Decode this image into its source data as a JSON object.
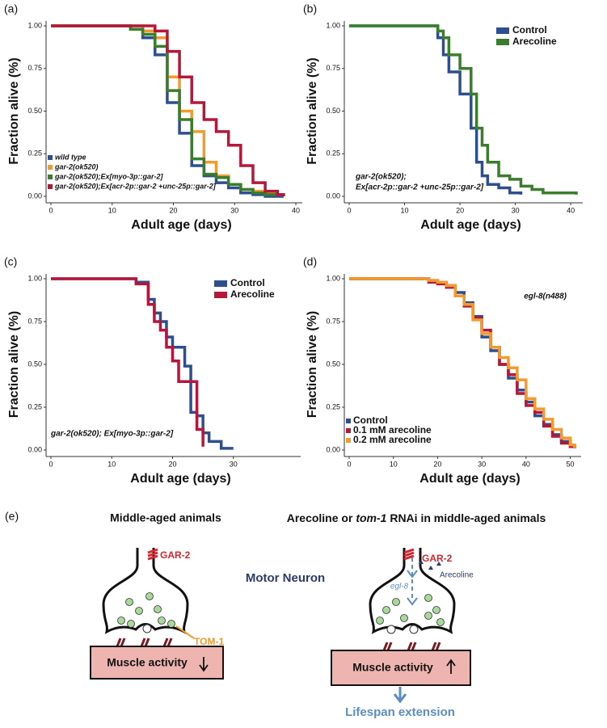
{
  "chart_data": [
    {
      "type": "step",
      "panel": "(a)",
      "ylabel": "Fraction alive (%)",
      "xlabel": "Adult age (days)",
      "legend": "lower left",
      "xlim": [
        0,
        40
      ],
      "xticks": [
        0,
        10,
        20,
        30,
        40
      ],
      "ylim": [
        0,
        1
      ],
      "yticks": [
        {
          "value": 0,
          "label": "0.00"
        },
        {
          "value": 0.25,
          "label": "0.25"
        },
        {
          "value": 0.5,
          "label": "0.50"
        },
        {
          "value": 0.75,
          "label": "0.75"
        },
        {
          "value": 1,
          "label": "1.00"
        }
      ],
      "x": [
        0,
        13,
        15,
        17,
        19,
        21,
        23,
        25,
        27,
        29,
        31,
        33,
        35,
        37,
        38
      ],
      "series": [
        {
          "name": "wild type",
          "color": "#2e4f8f",
          "values": [
            1,
            0.98,
            0.93,
            0.83,
            0.55,
            0.37,
            0.18,
            0.12,
            0.08,
            0.05,
            0.02,
            0.01,
            0,
            0,
            0
          ]
        },
        {
          "name": "gar-2(ok520)",
          "color": "#f39a2d",
          "values": [
            1,
            1,
            0.97,
            0.93,
            0.7,
            0.5,
            0.38,
            0.2,
            0.12,
            0.07,
            0.04,
            0.03,
            0.02,
            0.01,
            0.01
          ]
        },
        {
          "name": "gar-2(ok520);Ex[myo-3p::gar-2]",
          "color": "#3a7d2c",
          "values": [
            1,
            0.98,
            0.95,
            0.88,
            0.62,
            0.45,
            0.22,
            0.13,
            0.11,
            0.07,
            0.04,
            0.02,
            0.01,
            0.01,
            0
          ]
        },
        {
          "name": "gar-2(ok520);Ex[acr-2p::gar-2 +unc-25p::gar-2]",
          "color": "#b5173a",
          "values": [
            1,
            1,
            1,
            0.97,
            0.85,
            0.7,
            0.55,
            0.45,
            0.38,
            0.3,
            0.18,
            0.08,
            0.03,
            0.01,
            0
          ]
        }
      ]
    },
    {
      "type": "step",
      "panel": "(b)",
      "ylabel": "Fraction alive (%)",
      "xlabel": "Adult age (days)",
      "legend": "upper right",
      "annotation": [
        "gar-2(ok520);",
        "Ex[acr-2p::gar-2 +unc-25p::gar-2]"
      ],
      "xlim": [
        0,
        41
      ],
      "xticks": [
        0,
        10,
        20,
        30,
        40
      ],
      "ylim": [
        0,
        1
      ],
      "yticks": [
        {
          "value": 0,
          "label": "0.00"
        },
        {
          "value": 0.25,
          "label": "0.25"
        },
        {
          "value": 0.5,
          "label": "0.50"
        },
        {
          "value": 0.75,
          "label": "0.75"
        },
        {
          "value": 1,
          "label": "1.00"
        }
      ],
      "x": [
        0,
        16,
        17,
        18,
        20,
        22,
        23,
        24,
        25,
        27,
        29,
        31,
        33,
        35,
        38,
        41
      ],
      "series": [
        {
          "name": "Control",
          "color": "#2e4f8f",
          "values": [
            1,
            0.93,
            0.83,
            0.73,
            0.6,
            0.4,
            0.2,
            0.12,
            0.07,
            0.05,
            0.02,
            0.01,
            null,
            null,
            null,
            null
          ]
        },
        {
          "name": "Arecoline",
          "color": "#3a7d2c",
          "values": [
            1,
            0.97,
            0.93,
            0.83,
            0.75,
            0.6,
            0.4,
            0.3,
            0.2,
            0.12,
            0.1,
            0.06,
            0.04,
            0.02,
            0.02,
            0.01
          ]
        }
      ]
    },
    {
      "type": "step",
      "panel": "(c)",
      "ylabel": "Fraction alive (%)",
      "xlabel": "Adult age (days)",
      "legend": "upper right",
      "annotation": [
        "gar-2(ok520); Ex[myo-3p::gar-2]"
      ],
      "xlim": [
        0,
        40
      ],
      "xticks": [
        0,
        10,
        20,
        30
      ],
      "ylim": [
        0,
        1
      ],
      "yticks": [
        {
          "value": 0,
          "label": "0.00"
        },
        {
          "value": 0.25,
          "label": "0.25"
        },
        {
          "value": 0.5,
          "label": "0.50"
        },
        {
          "value": 0.75,
          "label": "0.75"
        },
        {
          "value": 1,
          "label": "1.00"
        }
      ],
      "x": [
        0,
        14,
        16,
        17,
        18,
        19,
        20,
        21,
        22,
        23,
        24,
        25,
        26,
        28,
        30
      ],
      "series": [
        {
          "name": "Control",
          "color": "#2e4f8f",
          "values": [
            1,
            0.98,
            0.88,
            0.8,
            0.75,
            0.66,
            0.6,
            0.6,
            0.49,
            0.22,
            0.2,
            0.1,
            0.05,
            0.01,
            0.01
          ]
        },
        {
          "name": "Arecoline",
          "color": "#b5173a",
          "values": [
            1,
            0.97,
            0.85,
            0.75,
            0.7,
            0.6,
            0.52,
            0.4,
            0.4,
            0.4,
            0.12,
            0.02,
            null,
            null,
            null
          ]
        }
      ]
    },
    {
      "type": "step",
      "panel": "(d)",
      "ylabel": "Fraction alive (%)",
      "xlabel": "Adult age (days)",
      "legend": "lower left",
      "annotation": [
        "egl-8(n488)"
      ],
      "xlim": [
        0,
        51
      ],
      "xticks": [
        0,
        10,
        20,
        30,
        40,
        50
      ],
      "ylim": [
        0,
        1
      ],
      "yticks": [
        {
          "value": 0,
          "label": "0.00"
        },
        {
          "value": 0.25,
          "label": "0.25"
        },
        {
          "value": 0.5,
          "label": "0.50"
        },
        {
          "value": 0.75,
          "label": "0.75"
        },
        {
          "value": 1,
          "label": "1.00"
        }
      ],
      "x": [
        0,
        18,
        20,
        22,
        24,
        26,
        28,
        30,
        32,
        34,
        36,
        38,
        40,
        42,
        44,
        46,
        48,
        50,
        51
      ],
      "series": [
        {
          "name": "Control",
          "color": "#2e4f8f",
          "values": [
            1,
            0.99,
            0.98,
            0.96,
            0.92,
            0.86,
            0.78,
            0.66,
            0.58,
            0.5,
            0.42,
            0.35,
            0.28,
            0.2,
            0.15,
            0.09,
            0.05,
            0.02,
            0.01
          ]
        },
        {
          "name": "0.1 mM arecoline",
          "color": "#b5173a",
          "values": [
            1,
            0.98,
            0.97,
            0.95,
            0.9,
            0.84,
            0.77,
            0.7,
            0.6,
            0.5,
            0.44,
            0.33,
            0.26,
            0.22,
            0.14,
            0.08,
            0.04,
            0.02,
            0.01
          ]
        },
        {
          "name": "0.2 mM arecoline",
          "color": "#f39a2d",
          "values": [
            1,
            0.99,
            0.98,
            0.96,
            0.9,
            0.85,
            0.76,
            0.68,
            0.6,
            0.54,
            0.48,
            0.41,
            0.3,
            0.24,
            0.18,
            0.12,
            0.07,
            0.03,
            0.01
          ]
        }
      ]
    }
  ],
  "diagram": {
    "panel": "(e)",
    "left": {
      "title": "Middle-aged animals",
      "receptor": "GAR-2",
      "transporter": "TOM-1",
      "muscle": "Muscle activity"
    },
    "center": "Motor Neuron",
    "right": {
      "title": [
        "Arecoline or ",
        "tom-1",
        " RNAi in middle-aged animals"
      ],
      "receptor": "GAR-2",
      "drug": "Arecoline",
      "gene": "egl-8",
      "muscle": "Muscle activity",
      "outcome": "Lifespan extension"
    }
  }
}
